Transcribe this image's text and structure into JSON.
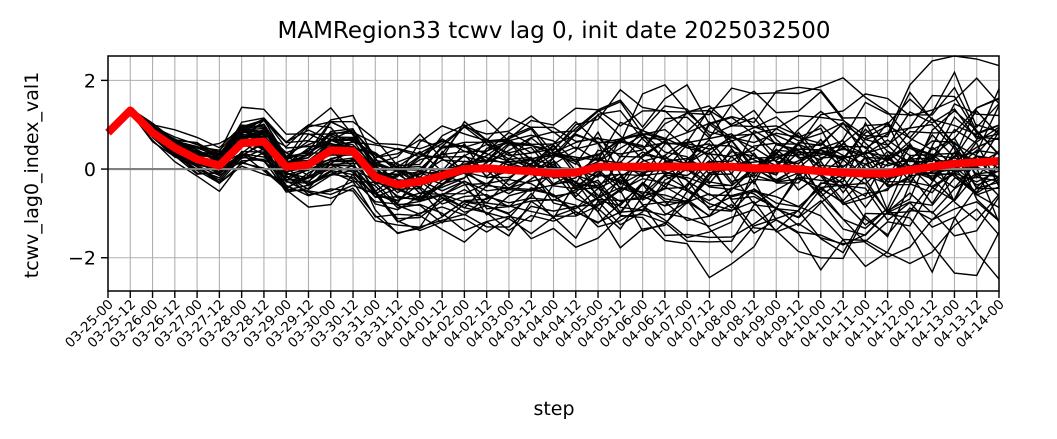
{
  "chart_data": {
    "type": "line",
    "title": "MAMRegion33 tcwv lag 0, init date 2025032500",
    "xlabel": "step",
    "ylabel": "tcwv_lag0_index_val1",
    "ylim": [
      -2.75,
      2.55
    ],
    "yticks": [
      -2,
      0,
      2
    ],
    "grid": true,
    "legend": "none",
    "categories": [
      "03-25-00",
      "03-25-12",
      "03-26-00",
      "03-26-12",
      "03-27-00",
      "03-27-12",
      "03-28-00",
      "03-28-12",
      "03-29-00",
      "03-29-12",
      "03-30-00",
      "03-30-12",
      "03-31-00",
      "03-31-12",
      "04-01-00",
      "04-01-12",
      "04-02-00",
      "04-02-12",
      "04-03-00",
      "04-03-12",
      "04-04-00",
      "04-04-12",
      "04-05-00",
      "04-05-12",
      "04-06-00",
      "04-06-12",
      "04-07-00",
      "04-07-12",
      "04-08-00",
      "04-08-12",
      "04-09-00",
      "04-09-12",
      "04-10-00",
      "04-10-12",
      "04-11-00",
      "04-11-12",
      "04-12-00",
      "04-12-12",
      "04-13-00",
      "04-13-12",
      "04-14-00"
    ],
    "ensemble": {
      "color": "#000000",
      "members": 51,
      "initial_values": [
        0.82,
        1.3,
        0.8,
        0.45,
        0.2,
        0.1,
        0.55,
        0.6,
        0.1,
        0.15,
        0.4,
        0.4,
        0.0
      ],
      "spread": [
        0.02,
        0.03,
        0.12,
        0.18,
        0.22,
        0.3,
        0.38,
        0.42,
        0.4,
        0.48,
        0.52,
        0.5,
        0.5,
        0.55,
        0.6,
        0.62,
        0.65,
        0.68,
        0.7,
        0.72,
        0.74,
        0.76,
        0.78,
        0.8,
        0.82,
        0.84,
        0.85,
        0.86,
        0.87,
        0.88,
        0.89,
        0.9,
        0.91,
        0.92,
        0.93,
        0.94,
        0.95,
        0.96,
        0.97,
        0.98,
        0.99
      ]
    },
    "series": [
      {
        "color": "#ff0000",
        "values": [
          0.82,
          1.32,
          0.82,
          0.48,
          0.22,
          0.08,
          0.58,
          0.62,
          0.05,
          0.1,
          0.42,
          0.4,
          -0.18,
          -0.35,
          -0.28,
          -0.15,
          0.0,
          0.02,
          -0.02,
          -0.05,
          -0.1,
          -0.08,
          0.05,
          0.05,
          0.05,
          0.05,
          0.05,
          0.05,
          0.05,
          0.02,
          0.02,
          0.0,
          -0.05,
          -0.08,
          -0.1,
          -0.1,
          -0.02,
          0.05,
          0.12,
          0.15,
          0.18
        ]
      }
    ],
    "zero_line_color": "#808080"
  }
}
